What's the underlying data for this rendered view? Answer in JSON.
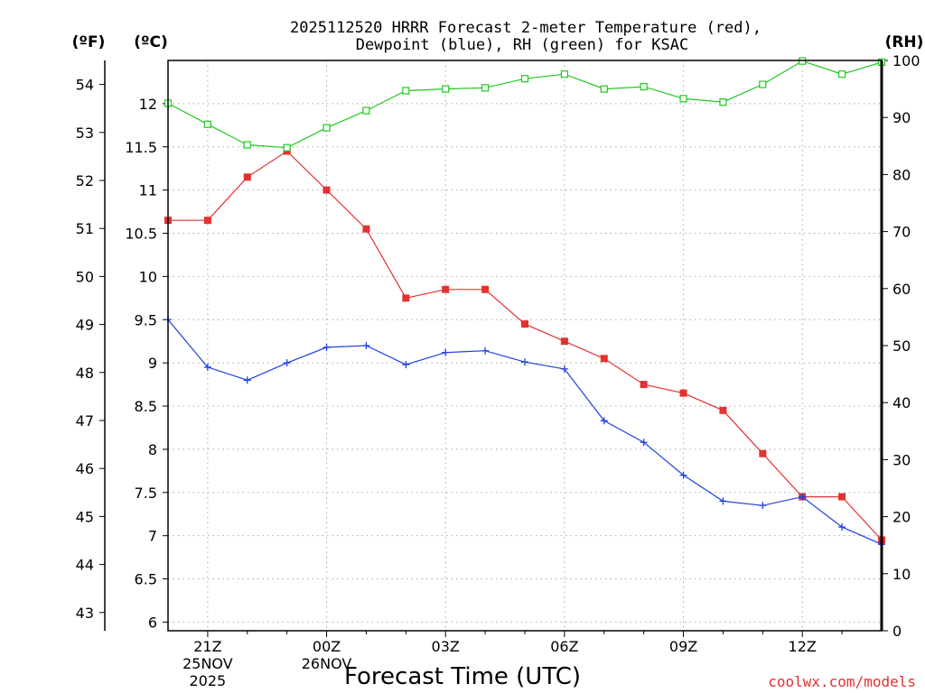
{
  "chart_data": {
    "type": "line",
    "title": "2025112520 HRRR Forecast 2-meter Temperature (red),",
    "title_line2": "Dewpoint (blue), RH (green) for KSAC",
    "xlabel": "Forecast Time (UTC)",
    "credit": "coolwx.com/models",
    "unit_f": "(ºF)",
    "unit_c": "(ºC)",
    "unit_rh": "(RH)",
    "x_hours": [
      20,
      21,
      22,
      23,
      24,
      25,
      26,
      27,
      28,
      29,
      30,
      31,
      32,
      33,
      34,
      35,
      36,
      37,
      38
    ],
    "xlim": [
      20,
      38
    ],
    "x_ticks": [
      {
        "hour": 21,
        "lines": [
          "21Z",
          "25NOV",
          "2025"
        ]
      },
      {
        "hour": 24,
        "lines": [
          "00Z",
          "26NOV"
        ]
      },
      {
        "hour": 27,
        "lines": [
          "03Z"
        ]
      },
      {
        "hour": 30,
        "lines": [
          "06Z"
        ]
      },
      {
        "hour": 33,
        "lines": [
          "09Z"
        ]
      },
      {
        "hour": 36,
        "lines": [
          "12Z"
        ]
      }
    ],
    "y_celsius": {
      "range": [
        5.9,
        12.5
      ],
      "ticks": [
        "6",
        "6.5",
        "7",
        "7.5",
        "8",
        "8.5",
        "9",
        "9.5",
        "10",
        "10.5",
        "11",
        "11.5",
        "12"
      ]
    },
    "y_fahrenheit": {
      "ticks": [
        "43",
        "44",
        "45",
        "46",
        "47",
        "48",
        "49",
        "50",
        "51",
        "52",
        "53",
        "54"
      ]
    },
    "y_rh": {
      "range": [
        0,
        100
      ],
      "ticks": [
        "0",
        "10",
        "20",
        "30",
        "40",
        "50",
        "60",
        "70",
        "80",
        "90",
        "100"
      ]
    },
    "series": [
      {
        "name": "Temperature",
        "axis": "celsius",
        "color": "#e53030",
        "marker": "filled-square",
        "values": [
          10.65,
          10.65,
          11.15,
          11.45,
          11.0,
          10.55,
          9.75,
          9.85,
          9.85,
          9.45,
          9.25,
          9.05,
          8.75,
          8.65,
          8.45,
          7.95,
          7.45,
          7.45,
          6.95
        ]
      },
      {
        "name": "Dewpoint",
        "axis": "celsius",
        "color": "#2040e0",
        "marker": "plus",
        "values": [
          9.5,
          8.95,
          8.8,
          9.0,
          9.18,
          9.2,
          8.98,
          9.12,
          9.14,
          9.01,
          8.93,
          8.33,
          8.08,
          7.7,
          7.4,
          7.35,
          7.45,
          7.1,
          6.9
        ]
      },
      {
        "name": "RH",
        "axis": "rh",
        "color": "#20c820",
        "marker": "open-square",
        "values": [
          92.5,
          88.8,
          85.2,
          84.7,
          88.2,
          91.2,
          94.7,
          95.0,
          95.2,
          96.8,
          97.6,
          95.0,
          95.4,
          93.3,
          92.7,
          95.8,
          99.9,
          97.6,
          99.7
        ]
      }
    ]
  }
}
